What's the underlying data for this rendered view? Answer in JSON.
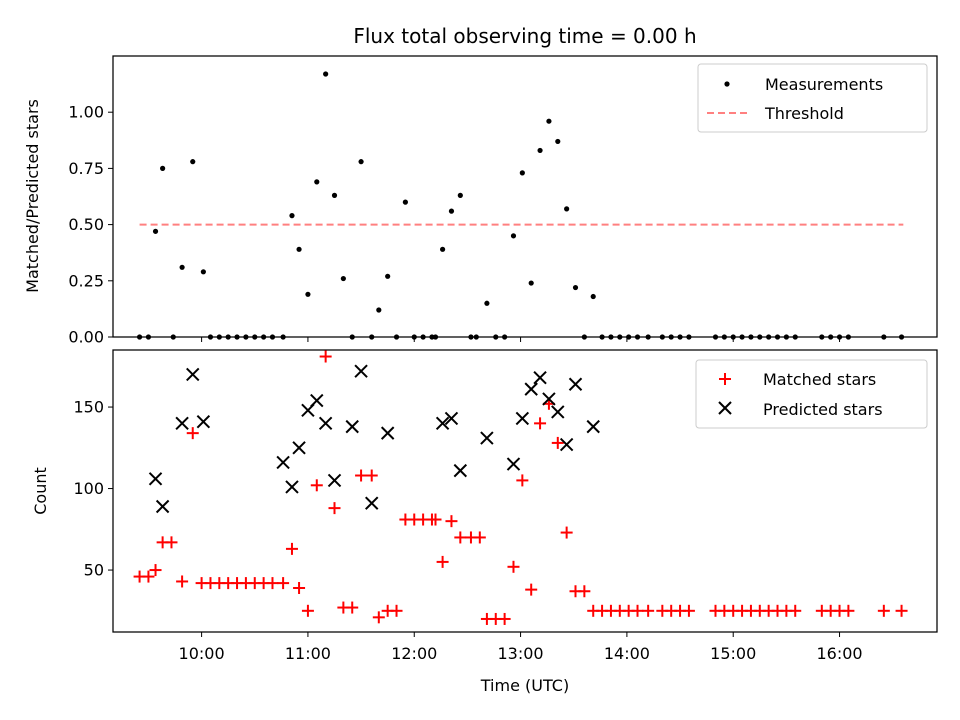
{
  "chart_data": [
    {
      "type": "scatter",
      "title": "Flux total observing time = 0.00 h",
      "xlabel": "",
      "ylabel": "Matched/Predicted stars",
      "ylim": [
        0,
        1.25
      ],
      "xlim": [
        "09:10",
        "16:55"
      ],
      "x_ticks": [
        "10:00",
        "11:00",
        "12:00",
        "13:00",
        "14:00",
        "15:00",
        "16:00"
      ],
      "x_tick_labels_visible": false,
      "y_ticks": [
        0.0,
        0.25,
        0.5,
        0.75,
        1.0
      ],
      "y_tick_labels": [
        "0.00",
        "0.25",
        "0.50",
        "0.75",
        "1.00"
      ],
      "grid": false,
      "legend_position": "top-right",
      "legend": [
        {
          "label": "Measurements",
          "marker": "dot",
          "color": "#000000"
        },
        {
          "label": "Threshold",
          "marker": "dashed-line",
          "color": "#ff8080"
        }
      ],
      "threshold": {
        "y": 0.5,
        "x_start": "09:25",
        "x_end": "16:36",
        "color": "#ff8080"
      },
      "series": [
        {
          "name": "Measurements",
          "color": "#000000",
          "points": [
            [
              "09:25",
              0
            ],
            [
              "09:30",
              0
            ],
            [
              "09:34",
              0.47
            ],
            [
              "09:38",
              0.75
            ],
            [
              "09:44",
              0
            ],
            [
              "09:49",
              0.31
            ],
            [
              "09:55",
              0.78
            ],
            [
              "10:01",
              0.29
            ],
            [
              "10:05",
              0
            ],
            [
              "10:10",
              0
            ],
            [
              "10:15",
              0
            ],
            [
              "10:20",
              0
            ],
            [
              "10:25",
              0
            ],
            [
              "10:30",
              0
            ],
            [
              "10:35",
              0
            ],
            [
              "10:40",
              0
            ],
            [
              "10:46",
              0
            ],
            [
              "10:51",
              0.54
            ],
            [
              "10:55",
              0.39
            ],
            [
              "11:00",
              0.19
            ],
            [
              "11:05",
              0.69
            ],
            [
              "11:10",
              1.17
            ],
            [
              "11:15",
              0.63
            ],
            [
              "11:20",
              0.26
            ],
            [
              "11:25",
              0
            ],
            [
              "11:30",
              0.78
            ],
            [
              "11:36",
              0
            ],
            [
              "11:40",
              0.12
            ],
            [
              "11:45",
              0.27
            ],
            [
              "11:50",
              0
            ],
            [
              "11:55",
              0.6
            ],
            [
              "12:00",
              0
            ],
            [
              "12:05",
              0
            ],
            [
              "12:10",
              0
            ],
            [
              "12:12",
              0
            ],
            [
              "12:16",
              0.39
            ],
            [
              "12:21",
              0.56
            ],
            [
              "12:26",
              0.63
            ],
            [
              "12:32",
              0
            ],
            [
              "12:35",
              0
            ],
            [
              "12:41",
              0.15
            ],
            [
              "12:46",
              0
            ],
            [
              "12:51",
              0
            ],
            [
              "12:56",
              0.45
            ],
            [
              "13:01",
              0.73
            ],
            [
              "13:06",
              0.24
            ],
            [
              "13:11",
              0.83
            ],
            [
              "13:16",
              0.96
            ],
            [
              "13:21",
              0.87
            ],
            [
              "13:26",
              0.57
            ],
            [
              "13:31",
              0.22
            ],
            [
              "13:36",
              0
            ],
            [
              "13:41",
              0.18
            ],
            [
              "13:46",
              0
            ],
            [
              "13:51",
              0
            ],
            [
              "13:56",
              0
            ],
            [
              "14:01",
              0
            ],
            [
              "14:06",
              0
            ],
            [
              "14:12",
              0
            ],
            [
              "14:20",
              0
            ],
            [
              "14:25",
              0
            ],
            [
              "14:30",
              0
            ],
            [
              "14:35",
              0
            ],
            [
              "14:50",
              0
            ],
            [
              "14:55",
              0
            ],
            [
              "15:00",
              0
            ],
            [
              "15:05",
              0
            ],
            [
              "15:10",
              0
            ],
            [
              "15:15",
              0
            ],
            [
              "15:20",
              0
            ],
            [
              "15:25",
              0
            ],
            [
              "15:30",
              0
            ],
            [
              "15:35",
              0
            ],
            [
              "15:50",
              0
            ],
            [
              "15:55",
              0
            ],
            [
              "16:00",
              0
            ],
            [
              "16:05",
              0
            ],
            [
              "16:25",
              0
            ],
            [
              "16:35",
              0
            ]
          ]
        }
      ]
    },
    {
      "type": "scatter",
      "title": "",
      "xlabel": "Time (UTC)",
      "ylabel": "Count",
      "ylim": [
        12,
        185
      ],
      "xlim": [
        "09:10",
        "16:55"
      ],
      "x_ticks": [
        "10:00",
        "11:00",
        "12:00",
        "13:00",
        "14:00",
        "15:00",
        "16:00"
      ],
      "x_tick_labels": [
        "10:00",
        "11:00",
        "12:00",
        "13:00",
        "14:00",
        "15:00",
        "16:00"
      ],
      "y_ticks": [
        50,
        100,
        150
      ],
      "y_tick_labels": [
        "50",
        "100",
        "150"
      ],
      "grid": false,
      "legend_position": "top-right",
      "legend": [
        {
          "label": "Matched stars",
          "marker": "plus",
          "color": "#ff0000"
        },
        {
          "label": "Predicted stars",
          "marker": "x",
          "color": "#000000"
        }
      ],
      "series": [
        {
          "name": "Matched stars",
          "color": "#ff0000",
          "points": [
            [
              "09:25",
              46
            ],
            [
              "09:30",
              46
            ],
            [
              "09:34",
              50
            ],
            [
              "09:38",
              67
            ],
            [
              "09:43",
              67
            ],
            [
              "09:49",
              43
            ],
            [
              "09:55",
              134
            ],
            [
              "10:00",
              42
            ],
            [
              "10:05",
              42
            ],
            [
              "10:10",
              42
            ],
            [
              "10:15",
              42
            ],
            [
              "10:20",
              42
            ],
            [
              "10:25",
              42
            ],
            [
              "10:30",
              42
            ],
            [
              "10:35",
              42
            ],
            [
              "10:40",
              42
            ],
            [
              "10:46",
              42
            ],
            [
              "10:51",
              63
            ],
            [
              "10:55",
              39
            ],
            [
              "11:00",
              25
            ],
            [
              "11:05",
              102
            ],
            [
              "11:10",
              181
            ],
            [
              "11:15",
              88
            ],
            [
              "11:20",
              27
            ],
            [
              "11:25",
              27
            ],
            [
              "11:30",
              108
            ],
            [
              "11:36",
              108
            ],
            [
              "11:40",
              21
            ],
            [
              "11:45",
              25
            ],
            [
              "11:50",
              25
            ],
            [
              "11:55",
              81
            ],
            [
              "12:00",
              81
            ],
            [
              "12:05",
              81
            ],
            [
              "12:10",
              81
            ],
            [
              "12:12",
              81
            ],
            [
              "12:16",
              55
            ],
            [
              "12:21",
              80
            ],
            [
              "12:26",
              70
            ],
            [
              "12:32",
              70
            ],
            [
              "12:37",
              70
            ],
            [
              "12:41",
              20
            ],
            [
              "12:46",
              20
            ],
            [
              "12:51",
              20
            ],
            [
              "12:56",
              52
            ],
            [
              "13:01",
              105
            ],
            [
              "13:06",
              38
            ],
            [
              "13:11",
              140
            ],
            [
              "13:16",
              152
            ],
            [
              "13:21",
              128
            ],
            [
              "13:26",
              73
            ],
            [
              "13:31",
              37
            ],
            [
              "13:36",
              37
            ],
            [
              "13:41",
              25
            ],
            [
              "13:46",
              25
            ],
            [
              "13:51",
              25
            ],
            [
              "13:56",
              25
            ],
            [
              "14:01",
              25
            ],
            [
              "14:06",
              25
            ],
            [
              "14:12",
              25
            ],
            [
              "14:20",
              25
            ],
            [
              "14:25",
              25
            ],
            [
              "14:30",
              25
            ],
            [
              "14:35",
              25
            ],
            [
              "14:50",
              25
            ],
            [
              "14:55",
              25
            ],
            [
              "15:00",
              25
            ],
            [
              "15:05",
              25
            ],
            [
              "15:10",
              25
            ],
            [
              "15:15",
              25
            ],
            [
              "15:20",
              25
            ],
            [
              "15:25",
              25
            ],
            [
              "15:30",
              25
            ],
            [
              "15:35",
              25
            ],
            [
              "15:50",
              25
            ],
            [
              "15:55",
              25
            ],
            [
              "16:00",
              25
            ],
            [
              "16:05",
              25
            ],
            [
              "16:25",
              25
            ],
            [
              "16:35",
              25
            ]
          ]
        },
        {
          "name": "Predicted stars",
          "color": "#000000",
          "points": [
            [
              "09:34",
              106
            ],
            [
              "09:38",
              89
            ],
            [
              "09:49",
              140
            ],
            [
              "09:55",
              170
            ],
            [
              "10:01",
              141
            ],
            [
              "10:46",
              116
            ],
            [
              "10:51",
              101
            ],
            [
              "10:55",
              125
            ],
            [
              "11:00",
              148
            ],
            [
              "11:05",
              154
            ],
            [
              "11:10",
              140
            ],
            [
              "11:15",
              105
            ],
            [
              "11:25",
              138
            ],
            [
              "11:30",
              172
            ],
            [
              "11:36",
              91
            ],
            [
              "11:45",
              134
            ],
            [
              "12:16",
              140
            ],
            [
              "12:21",
              143
            ],
            [
              "12:26",
              111
            ],
            [
              "12:41",
              131
            ],
            [
              "12:56",
              115
            ],
            [
              "13:01",
              143
            ],
            [
              "13:06",
              161
            ],
            [
              "13:11",
              168
            ],
            [
              "13:16",
              155
            ],
            [
              "13:21",
              147
            ],
            [
              "13:26",
              127
            ],
            [
              "13:31",
              164
            ],
            [
              "13:41",
              138
            ]
          ]
        }
      ]
    }
  ]
}
